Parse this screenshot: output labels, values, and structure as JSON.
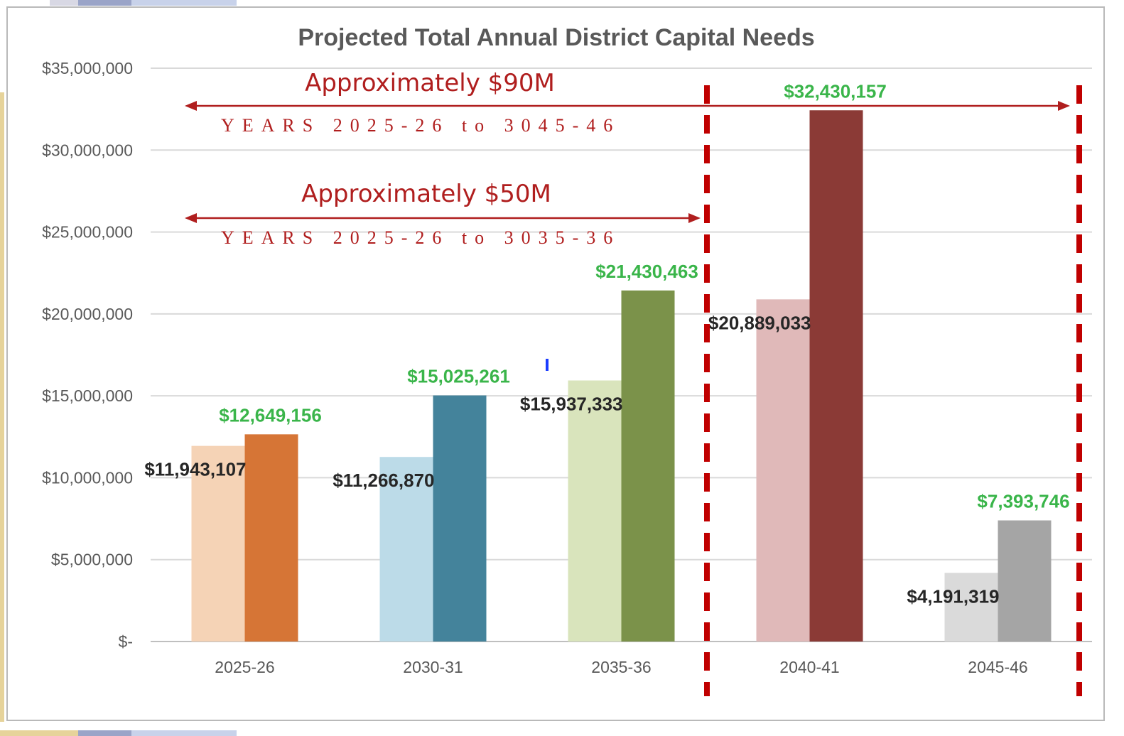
{
  "chart_data": {
    "type": "bar",
    "title": "Projected Total Annual District Capital Needs",
    "categories": [
      "2025-26",
      "2030-31",
      "2035-36",
      "2040-41",
      "2045-46"
    ],
    "series": [
      {
        "name": "Annual",
        "values": [
          11943107,
          11266870,
          15937333,
          20889033,
          4191319
        ],
        "labels": [
          "$11,943,107",
          "$11,266,870",
          "$15,937,333",
          "$20,889,033",
          "$4,191,319"
        ],
        "colors": [
          "#f5d3b6",
          "#bcdbe8",
          "#d9e4bc",
          "#e0b9b9",
          "#dadada"
        ],
        "label_color": "#262626"
      },
      {
        "name": "Total",
        "values": [
          12649156,
          15025261,
          21430463,
          32430157,
          7393746
        ],
        "labels": [
          "$12,649,156",
          "$15,025,261",
          "$21,430,463",
          "$32,430,157",
          "$7,393,746"
        ],
        "colors": [
          "#d67536",
          "#44839b",
          "#7b924a",
          "#8b3a36",
          "#a5a5a5"
        ],
        "label_color": "#3ab54a"
      }
    ],
    "y_ticks": [
      0,
      5000000,
      10000000,
      15000000,
      20000000,
      25000000,
      30000000,
      35000000
    ],
    "y_tick_labels": [
      "$-",
      "$5,000,000",
      "$10,000,000",
      "$15,000,000",
      "$20,000,000",
      "$25,000,000",
      "$30,000,000",
      "$35,000,000"
    ],
    "ylim": [
      0,
      35000000
    ],
    "xlabel": "",
    "ylabel": "",
    "grid": true,
    "annotations": [
      {
        "text": "Approximately $90M",
        "subtext": "YEARS 2025-26 to 3045-46",
        "color": "#b01e1e"
      },
      {
        "text": "Approximately $50M",
        "subtext": "YEARS 2025-26 to 3035-36",
        "color": "#b01e1e"
      }
    ]
  },
  "colors": {
    "gridline": "#d9d9d9",
    "axis_text": "#595959",
    "annotation": "#b01e1e",
    "divider": "#c00000"
  }
}
